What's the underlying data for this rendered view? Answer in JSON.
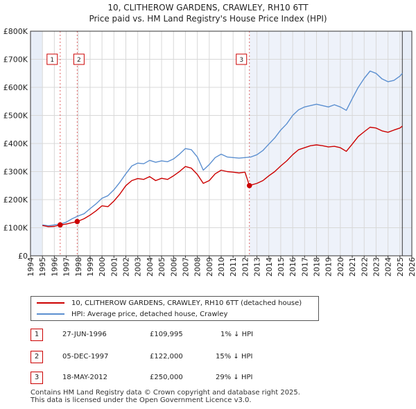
{
  "title": "10, CLITHEROW GARDENS, CRAWLEY, RH10 6TT",
  "subtitle": "Price paid vs. HM Land Registry's House Price Index (HPI)",
  "colors": {
    "property": "#cc0000",
    "hpi": "#5b8fd0",
    "shade": "#e8eef8",
    "marker_border": "#cc0000",
    "grid": "#d8d8d8"
  },
  "chart_data": {
    "type": "line",
    "title": "10, CLITHEROW GARDENS, CRAWLEY, RH10 6TT",
    "subtitle": "Price paid vs. HM Land Registry's House Price Index (HPI)",
    "xlim": [
      1994,
      2026
    ],
    "ylim": [
      0,
      800000
    ],
    "x_ticks": [
      1994,
      1995,
      1996,
      1997,
      1998,
      1999,
      2000,
      2001,
      2002,
      2003,
      2004,
      2005,
      2006,
      2007,
      2008,
      2009,
      2010,
      2011,
      2012,
      2013,
      2014,
      2015,
      2016,
      2017,
      2018,
      2019,
      2020,
      2021,
      2022,
      2023,
      2024,
      2025,
      2026
    ],
    "y_ticks": [
      {
        "value": 0,
        "label": "£0"
      },
      {
        "value": 100000,
        "label": "£100K"
      },
      {
        "value": 200000,
        "label": "£200K"
      },
      {
        "value": 300000,
        "label": "£300K"
      },
      {
        "value": 400000,
        "label": "£400K"
      },
      {
        "value": 500000,
        "label": "£500K"
      },
      {
        "value": 600000,
        "label": "£600K"
      },
      {
        "value": 700000,
        "label": "£700K"
      },
      {
        "value": 800000,
        "label": "£800K"
      }
    ],
    "grid": true,
    "shaded_ranges": [
      [
        1994,
        1995
      ],
      [
        2025.2,
        2026
      ]
    ],
    "series": [
      {
        "name": "10, CLITHEROW GARDENS, CRAWLEY, RH10 6TT (detached house)",
        "color": "#cc0000",
        "x": [
          1995.0,
          1995.5,
          1996.0,
          1996.49,
          1997.0,
          1997.5,
          1997.92,
          1998.5,
          1999.0,
          1999.5,
          2000.0,
          2000.5,
          2001.0,
          2001.5,
          2002.0,
          2002.5,
          2003.0,
          2003.5,
          2004.0,
          2004.5,
          2005.0,
          2005.5,
          2006.0,
          2006.5,
          2007.0,
          2007.5,
          2008.0,
          2008.5,
          2009.0,
          2009.5,
          2010.0,
          2010.5,
          2011.0,
          2011.5,
          2012.0,
          2012.37,
          2012.5,
          2013.0,
          2013.5,
          2014.0,
          2014.5,
          2015.0,
          2015.5,
          2016.0,
          2016.5,
          2017.0,
          2017.5,
          2018.0,
          2018.5,
          2019.0,
          2019.5,
          2020.0,
          2020.5,
          2021.0,
          2021.5,
          2022.0,
          2022.5,
          2023.0,
          2023.5,
          2024.0,
          2024.5,
          2025.0,
          2025.2
        ],
        "y": [
          108000,
          104000,
          105000,
          109995,
          113000,
          118000,
          122000,
          132000,
          145000,
          160000,
          178000,
          175000,
          195000,
          220000,
          250000,
          268000,
          275000,
          272000,
          282000,
          268000,
          276000,
          272000,
          285000,
          300000,
          318000,
          312000,
          290000,
          258000,
          268000,
          292000,
          305000,
          300000,
          298000,
          295000,
          298000,
          250000,
          252000,
          258000,
          268000,
          285000,
          300000,
          320000,
          338000,
          360000,
          378000,
          385000,
          392000,
          395000,
          392000,
          388000,
          390000,
          385000,
          372000,
          398000,
          425000,
          442000,
          458000,
          455000,
          445000,
          440000,
          448000,
          455000,
          462000
        ]
      },
      {
        "name": "HPI: Average price, detached house, Crawley",
        "color": "#5b8fd0",
        "x": [
          1995.0,
          1995.5,
          1996.0,
          1996.5,
          1997.0,
          1997.5,
          1998.0,
          1998.5,
          1999.0,
          1999.5,
          2000.0,
          2000.5,
          2001.0,
          2001.5,
          2002.0,
          2002.5,
          2003.0,
          2003.5,
          2004.0,
          2004.5,
          2005.0,
          2005.5,
          2006.0,
          2006.5,
          2007.0,
          2007.5,
          2008.0,
          2008.5,
          2009.0,
          2009.5,
          2010.0,
          2010.5,
          2011.0,
          2011.5,
          2012.0,
          2012.5,
          2013.0,
          2013.5,
          2014.0,
          2014.5,
          2015.0,
          2015.5,
          2016.0,
          2016.5,
          2017.0,
          2017.5,
          2018.0,
          2018.5,
          2019.0,
          2019.5,
          2020.0,
          2020.5,
          2021.0,
          2021.5,
          2022.0,
          2022.5,
          2023.0,
          2023.5,
          2024.0,
          2024.5,
          2025.0,
          2025.2
        ],
        "y": [
          110000,
          107000,
          110000,
          113000,
          120000,
          132000,
          142000,
          150000,
          168000,
          185000,
          205000,
          214000,
          235000,
          262000,
          292000,
          320000,
          330000,
          328000,
          340000,
          333000,
          338000,
          335000,
          345000,
          362000,
          382000,
          378000,
          352000,
          305000,
          325000,
          350000,
          362000,
          352000,
          350000,
          348000,
          350000,
          352000,
          360000,
          375000,
          398000,
          420000,
          448000,
          470000,
          500000,
          520000,
          530000,
          535000,
          540000,
          535000,
          530000,
          538000,
          530000,
          518000,
          560000,
          600000,
          632000,
          658000,
          650000,
          630000,
          620000,
          625000,
          640000,
          650000
        ]
      }
    ],
    "sales": [
      {
        "id": "1",
        "date": "27-JUN-1996",
        "x": 1996.49,
        "price": 109995,
        "price_label": "£109,995",
        "hpi_diff": "1% ↓ HPI"
      },
      {
        "id": "2",
        "date": "05-DEC-1997",
        "x": 1997.92,
        "price": 122000,
        "price_label": "£122,000",
        "hpi_diff": "15% ↓ HPI"
      },
      {
        "id": "3",
        "date": "18-MAY-2012",
        "x": 2012.37,
        "price": 250000,
        "price_label": "£250,000",
        "hpi_diff": "29% ↓ HPI"
      }
    ],
    "legend": [
      "10, CLITHEROW GARDENS, CRAWLEY, RH10 6TT (detached house)",
      "HPI: Average price, detached house, Crawley"
    ]
  },
  "footer": {
    "line1": "Contains HM Land Registry data © Crown copyright and database right 2025.",
    "line2": "This data is licensed under the Open Government Licence v3.0."
  }
}
